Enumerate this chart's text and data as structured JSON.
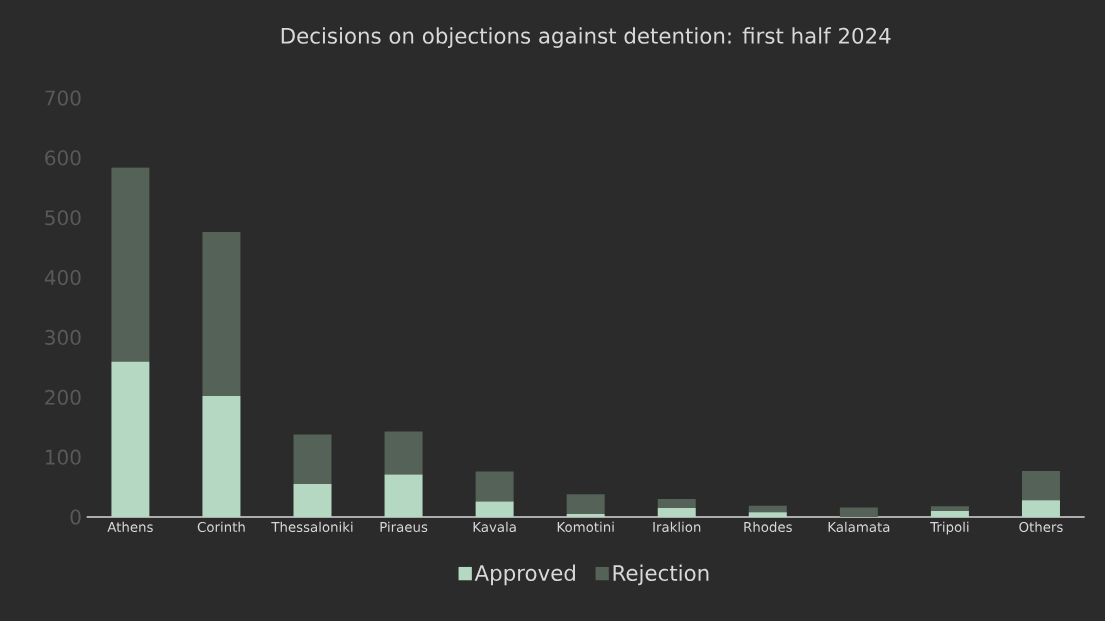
{
  "chart_data": {
    "type": "bar",
    "title": "Decisions on objections against detention: first half 2024",
    "categories": [
      "Athens",
      "Corinth",
      "Thessaloniki",
      "Piraeus",
      "Kavala",
      "Komotini",
      "Iraklion",
      "Rhodes",
      "Kalamata",
      "Tripoli",
      "Others"
    ],
    "stacked": true,
    "series": [
      {
        "name": "Approved",
        "color": "#b5d8c3",
        "values": [
          260,
          202,
          55,
          71,
          26,
          5,
          15,
          8,
          null,
          10,
          28
        ]
      },
      {
        "name": "Rejection",
        "color": "#546257",
        "values": [
          324,
          274,
          83,
          72,
          50,
          33,
          15,
          11,
          16,
          8,
          49
        ]
      }
    ],
    "ylim": [
      0,
      700
    ],
    "yticks": [
      0,
      100,
      200,
      300,
      400,
      500,
      600,
      700
    ],
    "grid": false,
    "legend": "bottom"
  }
}
